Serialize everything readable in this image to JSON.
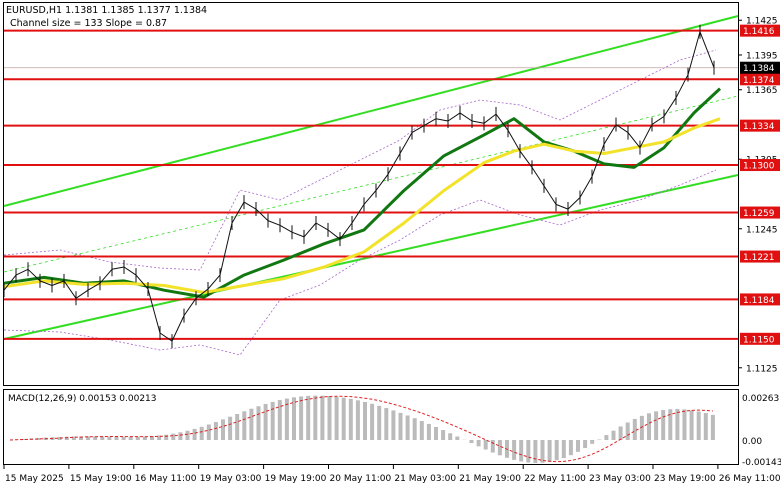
{
  "header": {
    "symbol_line": "EURUSD,H1  1.1381 1.1385 1.1377 1.1384",
    "channel_line": "Channel size = 133 Slope = 0.87"
  },
  "macd": {
    "label": "MACD(12,26,9) 0.00153 0.00213",
    "axis_labels": [
      "0.00263",
      "0.00",
      "-0.00143"
    ]
  },
  "chart_data": {
    "type": "line",
    "title": "EURUSD,H1",
    "y_range": [
      1.1111,
      1.1439
    ],
    "grid": false,
    "x_tick_labels": [
      "15 May 2025",
      "15 May 19:00",
      "16 May 11:00",
      "19 May 03:00",
      "19 May 19:00",
      "20 May 11:00",
      "21 May 03:00",
      "21 May 19:00",
      "22 May 11:00",
      "23 May 03:00",
      "23 May 19:00",
      "26 May 11:00"
    ],
    "price_axis_labels": [
      "1.1425",
      "1.1395",
      "1.1365",
      "1.1305",
      "1.1245",
      "1.1125"
    ],
    "horizontal_levels": [
      {
        "value": 1.1416,
        "label": "1.1416"
      },
      {
        "value": 1.1374,
        "label": "1.1374"
      },
      {
        "value": 1.1334,
        "label": "1.1334"
      },
      {
        "value": 1.13,
        "label": "1.1300"
      },
      {
        "value": 1.1259,
        "label": "1.1259"
      },
      {
        "value": 1.1221,
        "label": "1.1221"
      },
      {
        "value": 1.1184,
        "label": "1.1184"
      },
      {
        "value": 1.115,
        "label": "1.1150"
      }
    ],
    "current_price": {
      "value": 1.1384,
      "label": "1.1384"
    },
    "series": [
      {
        "x": [
          0,
          12,
          24,
          36,
          48,
          60,
          72,
          84,
          96,
          108,
          120,
          132,
          144,
          156,
          168,
          180,
          192,
          204,
          216,
          228,
          240,
          252,
          264,
          276,
          288,
          300,
          312,
          324,
          336,
          348,
          360,
          372,
          384,
          396,
          408,
          420,
          432,
          444,
          456,
          468,
          480,
          492,
          504,
          516,
          528,
          540,
          552,
          564,
          576,
          588,
          600,
          612,
          624,
          636,
          648,
          660,
          672,
          684,
          696,
          710
        ],
        "values": [
          1.1192,
          1.1205,
          1.121,
          1.12,
          1.1196,
          1.12,
          1.1185,
          1.1192,
          1.1198,
          1.121,
          1.1212,
          1.1205,
          1.1193,
          1.1155,
          1.1148,
          1.117,
          1.1185,
          1.1193,
          1.1205,
          1.125,
          1.1268,
          1.1262,
          1.1252,
          1.1248,
          1.1242,
          1.1238,
          1.125,
          1.1244,
          1.1236,
          1.125,
          1.1266,
          1.1278,
          1.1292,
          1.131,
          1.1328,
          1.1334,
          1.134,
          1.1338,
          1.1345,
          1.1338,
          1.1336,
          1.1344,
          1.133,
          1.1312,
          1.1298,
          1.1282,
          1.1266,
          1.1262,
          1.1272,
          1.129,
          1.1318,
          1.1335,
          1.1328,
          1.1315,
          1.1335,
          1.1342,
          1.1358,
          1.1378,
          1.1415,
          1.1384
        ]
      },
      {
        "x": [
          0,
          40,
          80,
          120,
          160,
          200,
          240,
          280,
          320,
          360,
          400,
          440,
          480,
          510,
          540,
          570,
          600,
          630,
          660,
          690,
          716
        ],
        "values": [
          1.1198,
          1.1203,
          1.1198,
          1.12,
          1.1192,
          1.1186,
          1.1205,
          1.1218,
          1.1232,
          1.1244,
          1.1278,
          1.1308,
          1.1326,
          1.134,
          1.132,
          1.1312,
          1.1301,
          1.1298,
          1.1315,
          1.1345,
          1.1366
        ]
      },
      {
        "x": [
          0,
          40,
          80,
          120,
          160,
          200,
          240,
          280,
          320,
          360,
          400,
          440,
          480,
          510,
          540,
          570,
          600,
          630,
          660,
          690,
          716
        ],
        "values": [
          1.1195,
          1.12,
          1.1197,
          1.1198,
          1.1196,
          1.119,
          1.1196,
          1.1202,
          1.1212,
          1.1225,
          1.125,
          1.1278,
          1.1302,
          1.1312,
          1.1318,
          1.1312,
          1.131,
          1.1315,
          1.132,
          1.1332,
          1.134
        ]
      }
    ]
  },
  "colors": {
    "level_line": "#e01010",
    "channel_line": "#33dd22",
    "ma_fast": "#117711",
    "ma_slow": "#f2e22a",
    "price_line": "#111111",
    "macd_hist": "#bbbbbb",
    "macd_signal": "#dd2222"
  }
}
